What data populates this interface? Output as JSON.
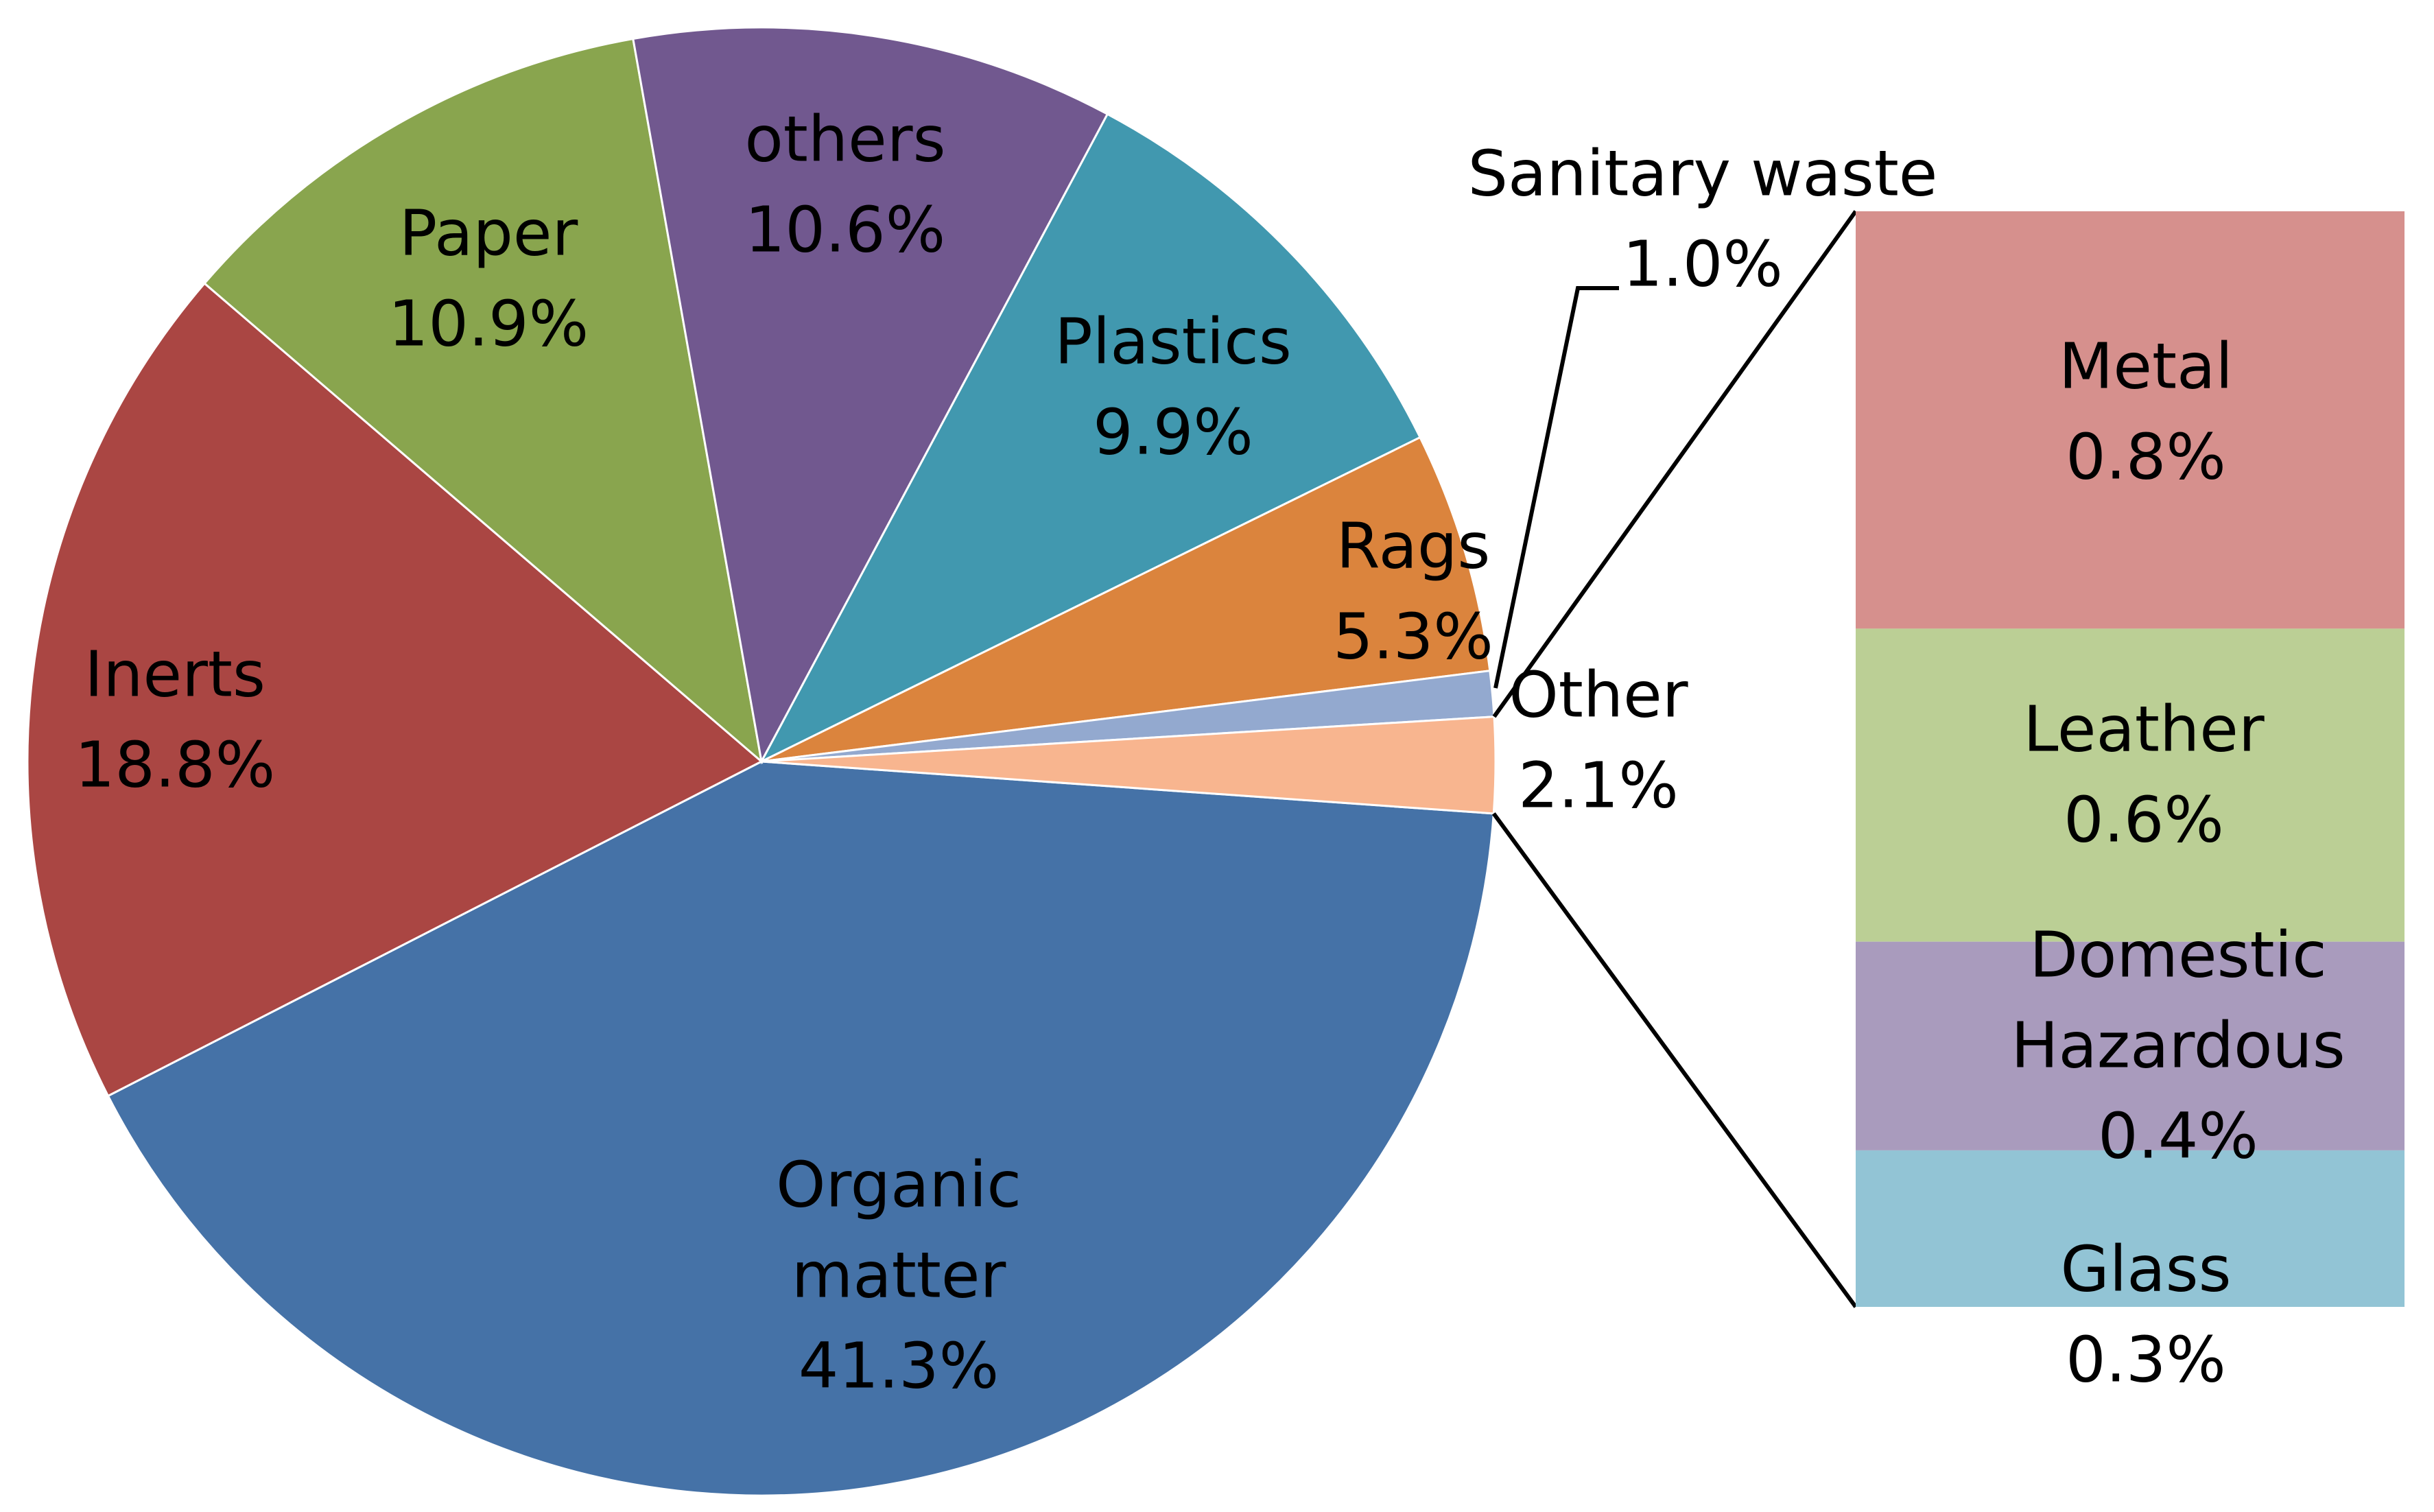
{
  "chart_data": {
    "type": "pie",
    "pie": {
      "slices": [
        {
          "name": "Organic matter",
          "label_lines": [
            "Organic",
            "matter"
          ],
          "value": 41.3,
          "value_label": "41.3%",
          "color": "#4572A7"
        },
        {
          "name": "Inerts",
          "label_lines": [
            "Inerts"
          ],
          "value": 18.8,
          "value_label": "18.8%",
          "color": "#AA4643"
        },
        {
          "name": "Paper",
          "label_lines": [
            "Paper"
          ],
          "value": 10.9,
          "value_label": "10.9%",
          "color": "#89A54E"
        },
        {
          "name": "others",
          "label_lines": [
            "others"
          ],
          "value": 10.6,
          "value_label": "10.6%",
          "color": "#71588F"
        },
        {
          "name": "Plastics",
          "label_lines": [
            "Plastics"
          ],
          "value": 9.9,
          "value_label": "9.9%",
          "color": "#4198AF"
        },
        {
          "name": "Rags",
          "label_lines": [
            "Rags"
          ],
          "value": 5.3,
          "value_label": "5.3%",
          "color": "#DB843D"
        },
        {
          "name": "Sanitary waste",
          "label_lines": [
            "Sanitary waste"
          ],
          "value": 1.0,
          "value_label": "1.0%",
          "color": "#93A9CF"
        },
        {
          "name": "Other",
          "label_lines": [
            "Other"
          ],
          "value": 2.1,
          "value_label": "2.1%",
          "color": "#F8B58F"
        }
      ]
    },
    "bar_of_pie": {
      "source_slice": "Other",
      "segments": [
        {
          "name": "Metal",
          "label_lines": [
            "Metal"
          ],
          "value": 0.8,
          "value_label": "0.8%",
          "color": "#D6908D"
        },
        {
          "name": "Leather",
          "label_lines": [
            "Leather"
          ],
          "value": 0.6,
          "value_label": "0.6%",
          "color": "#BBCF95"
        },
        {
          "name": "Domestic Hazardous",
          "label_lines": [
            "Domestic",
            "Hazardous"
          ],
          "value": 0.4,
          "value_label": "0.4%",
          "color": "#A99BBD"
        },
        {
          "name": "Glass",
          "label_lines": [
            "Glass"
          ],
          "value": 0.3,
          "value_label": "0.3%",
          "color": "#92C4D5"
        }
      ]
    }
  }
}
